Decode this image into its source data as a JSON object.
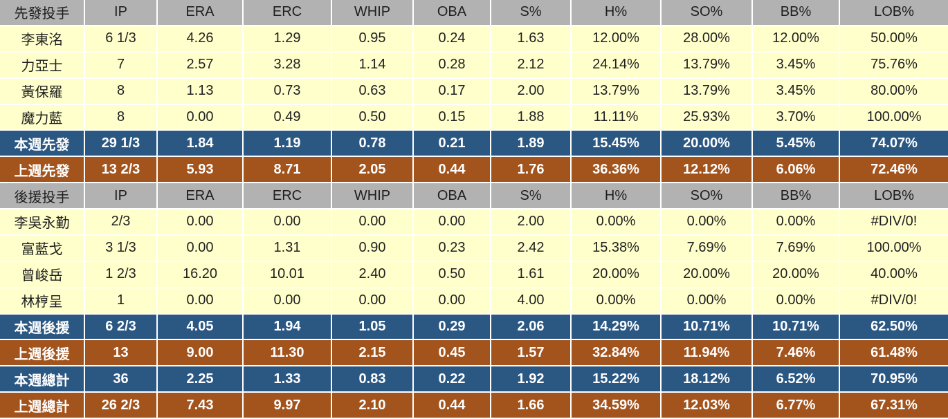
{
  "colors": {
    "header_bg": "#b2b2b2",
    "header_text": "#1f1f1f",
    "row_bg": "#ffffcc",
    "row_text": "#1f1f1f",
    "this_week_bg": "#2b5783",
    "last_week_bg": "#a3531c",
    "summary_text": "#ffffff",
    "grid": "#ffffff"
  },
  "chart_data": {
    "type": "table",
    "sections": [
      {
        "group_label": "先發投手",
        "columns": [
          "IP",
          "ERA",
          "ERC",
          "WHIP",
          "OBA",
          "S%",
          "H%",
          "SO%",
          "BB%",
          "LOB%"
        ],
        "rows": [
          {
            "label": "李東洺",
            "kind": "pitcher",
            "values": [
              "6 1/3",
              "4.26",
              "1.29",
              "0.95",
              "0.24",
              "1.63",
              "12.00%",
              "28.00%",
              "12.00%",
              "50.00%"
            ]
          },
          {
            "label": "力亞士",
            "kind": "pitcher",
            "values": [
              "7",
              "2.57",
              "3.28",
              "1.14",
              "0.28",
              "2.12",
              "24.14%",
              "13.79%",
              "3.45%",
              "75.76%"
            ]
          },
          {
            "label": "黃保羅",
            "kind": "pitcher",
            "values": [
              "8",
              "1.13",
              "0.73",
              "0.63",
              "0.17",
              "2.00",
              "13.79%",
              "13.79%",
              "3.45%",
              "80.00%"
            ]
          },
          {
            "label": "魔力藍",
            "kind": "pitcher",
            "values": [
              "8",
              "0.00",
              "0.49",
              "0.50",
              "0.15",
              "1.88",
              "11.11%",
              "25.93%",
              "3.70%",
              "100.00%"
            ]
          },
          {
            "label": "本週先發",
            "kind": "this-week",
            "values": [
              "29 1/3",
              "1.84",
              "1.19",
              "0.78",
              "0.21",
              "1.89",
              "15.45%",
              "20.00%",
              "5.45%",
              "74.07%"
            ]
          },
          {
            "label": "上週先發",
            "kind": "last-week",
            "values": [
              "13 2/3",
              "5.93",
              "8.71",
              "2.05",
              "0.44",
              "1.76",
              "36.36%",
              "12.12%",
              "6.06%",
              "72.46%"
            ]
          }
        ]
      },
      {
        "group_label": "後援投手",
        "columns": [
          "IP",
          "ERA",
          "ERC",
          "WHIP",
          "OBA",
          "S%",
          "H%",
          "SO%",
          "BB%",
          "LOB%"
        ],
        "rows": [
          {
            "label": "李吳永勤",
            "kind": "pitcher",
            "values": [
              "2/3",
              "0.00",
              "0.00",
              "0.00",
              "0.00",
              "2.00",
              "0.00%",
              "0.00%",
              "0.00%",
              "#DIV/0!"
            ]
          },
          {
            "label": "富藍戈",
            "kind": "pitcher",
            "values": [
              "3 1/3",
              "0.00",
              "1.31",
              "0.90",
              "0.23",
              "2.42",
              "15.38%",
              "7.69%",
              "7.69%",
              "100.00%"
            ]
          },
          {
            "label": "曾峻岳",
            "kind": "pitcher",
            "values": [
              "1 2/3",
              "16.20",
              "10.01",
              "2.40",
              "0.50",
              "1.61",
              "20.00%",
              "20.00%",
              "20.00%",
              "40.00%"
            ]
          },
          {
            "label": "林梈呈",
            "kind": "pitcher",
            "values": [
              "1",
              "0.00",
              "0.00",
              "0.00",
              "0.00",
              "4.00",
              "0.00%",
              "0.00%",
              "0.00%",
              "#DIV/0!"
            ]
          },
          {
            "label": "本週後援",
            "kind": "this-week",
            "values": [
              "6 2/3",
              "4.05",
              "1.94",
              "1.05",
              "0.29",
              "2.06",
              "14.29%",
              "10.71%",
              "10.71%",
              "62.50%"
            ]
          },
          {
            "label": "上週後援",
            "kind": "last-week",
            "values": [
              "13",
              "9.00",
              "11.30",
              "2.15",
              "0.45",
              "1.57",
              "32.84%",
              "11.94%",
              "7.46%",
              "61.48%"
            ]
          },
          {
            "label": "本週總計",
            "kind": "this-week",
            "values": [
              "36",
              "2.25",
              "1.33",
              "0.83",
              "0.22",
              "1.92",
              "15.22%",
              "18.12%",
              "6.52%",
              "70.95%"
            ]
          },
          {
            "label": "上週總計",
            "kind": "last-week",
            "values": [
              "26 2/3",
              "7.43",
              "9.97",
              "2.10",
              "0.44",
              "1.66",
              "34.59%",
              "12.03%",
              "6.77%",
              "67.31%"
            ]
          }
        ]
      }
    ]
  }
}
